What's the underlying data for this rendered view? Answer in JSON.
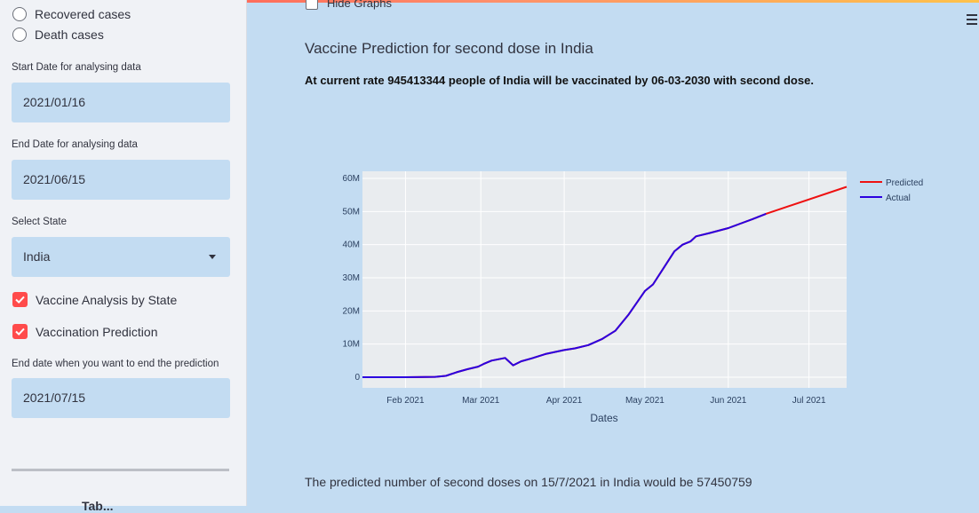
{
  "sidebar": {
    "radios": [
      {
        "label": "Recovered cases"
      },
      {
        "label": "Death cases"
      }
    ],
    "start_date": {
      "label": "Start Date for analysing data",
      "value": "2021/01/16"
    },
    "end_date": {
      "label": "End Date for analysing data",
      "value": "2021/06/15"
    },
    "state": {
      "label": "Select State",
      "value": "India"
    },
    "checkboxes": [
      {
        "label": "Vaccine Analysis by State",
        "checked": true
      },
      {
        "label": "Vaccination Prediction",
        "checked": true
      }
    ],
    "prediction_end": {
      "label": "End date when you want to end the prediction",
      "value": "2021/07/15"
    },
    "partial_heading": "Tab..."
  },
  "main": {
    "hide_graphs_label": "Hide Graphs",
    "title": "Vaccine Prediction for second dose in India",
    "summary": "At current rate 945413344 people of India will be vaccinated by 06-03-2030 with second dose.",
    "footer": "The predicted number of second doses on 15/7/2021 in India would be 57450759"
  },
  "chart_data": {
    "type": "line",
    "xlabel": "Dates",
    "ylabel": "",
    "x_tick_labels": [
      "Feb 2021",
      "Mar 2021",
      "Apr 2021",
      "May 2021",
      "Jun 2021",
      "Jul 2021"
    ],
    "y_tick_labels": [
      "0",
      "10M",
      "20M",
      "30M",
      "40M",
      "50M",
      "60M"
    ],
    "ylim": [
      0,
      60000000
    ],
    "xlim": [
      "2021-01-16",
      "2021-07-15"
    ],
    "grid": true,
    "legend": "top-right",
    "series": [
      {
        "name": "Actual",
        "color": "#2b00e0",
        "points": [
          [
            "2021-01-16",
            0
          ],
          [
            "2021-02-01",
            0
          ],
          [
            "2021-02-12",
            100000
          ],
          [
            "2021-02-16",
            400000
          ],
          [
            "2021-02-20",
            1500000
          ],
          [
            "2021-02-24",
            2400000
          ],
          [
            "2021-02-28",
            3200000
          ],
          [
            "2021-03-02",
            4000000
          ],
          [
            "2021-03-05",
            5000000
          ],
          [
            "2021-03-10",
            5800000
          ],
          [
            "2021-03-13",
            3600000
          ],
          [
            "2021-03-16",
            4800000
          ],
          [
            "2021-03-20",
            5700000
          ],
          [
            "2021-03-25",
            7000000
          ],
          [
            "2021-04-01",
            8200000
          ],
          [
            "2021-04-05",
            8700000
          ],
          [
            "2021-04-10",
            9700000
          ],
          [
            "2021-04-15",
            11500000
          ],
          [
            "2021-04-20",
            14000000
          ],
          [
            "2021-04-25",
            19000000
          ],
          [
            "2021-05-01",
            26000000
          ],
          [
            "2021-05-04",
            28000000
          ],
          [
            "2021-05-08",
            33000000
          ],
          [
            "2021-05-12",
            38000000
          ],
          [
            "2021-05-15",
            40000000
          ],
          [
            "2021-05-18",
            41000000
          ],
          [
            "2021-05-20",
            42500000
          ],
          [
            "2021-05-25",
            43500000
          ],
          [
            "2021-06-01",
            45000000
          ],
          [
            "2021-06-05",
            46200000
          ],
          [
            "2021-06-10",
            47700000
          ],
          [
            "2021-06-15",
            49300000
          ]
        ]
      },
      {
        "name": "Predicted",
        "color": "#ee1111",
        "points": [
          [
            "2021-01-16",
            0
          ],
          [
            "2021-02-01",
            0
          ],
          [
            "2021-02-12",
            100000
          ],
          [
            "2021-02-16",
            400000
          ],
          [
            "2021-02-20",
            1500000
          ],
          [
            "2021-02-24",
            2400000
          ],
          [
            "2021-02-28",
            3200000
          ],
          [
            "2021-03-02",
            4000000
          ],
          [
            "2021-03-05",
            5000000
          ],
          [
            "2021-03-10",
            5800000
          ],
          [
            "2021-03-13",
            3600000
          ],
          [
            "2021-03-16",
            4800000
          ],
          [
            "2021-03-20",
            5700000
          ],
          [
            "2021-03-25",
            7000000
          ],
          [
            "2021-04-01",
            8200000
          ],
          [
            "2021-04-05",
            8700000
          ],
          [
            "2021-04-10",
            9700000
          ],
          [
            "2021-04-15",
            11500000
          ],
          [
            "2021-04-20",
            14000000
          ],
          [
            "2021-04-25",
            19000000
          ],
          [
            "2021-05-01",
            26000000
          ],
          [
            "2021-05-04",
            28000000
          ],
          [
            "2021-05-08",
            33000000
          ],
          [
            "2021-05-12",
            38000000
          ],
          [
            "2021-05-15",
            40000000
          ],
          [
            "2021-05-18",
            41000000
          ],
          [
            "2021-05-20",
            42500000
          ],
          [
            "2021-05-25",
            43500000
          ],
          [
            "2021-06-01",
            45000000
          ],
          [
            "2021-06-05",
            46200000
          ],
          [
            "2021-06-10",
            47700000
          ],
          [
            "2021-06-15",
            49300000
          ],
          [
            "2021-07-15",
            57450759
          ]
        ]
      }
    ]
  }
}
